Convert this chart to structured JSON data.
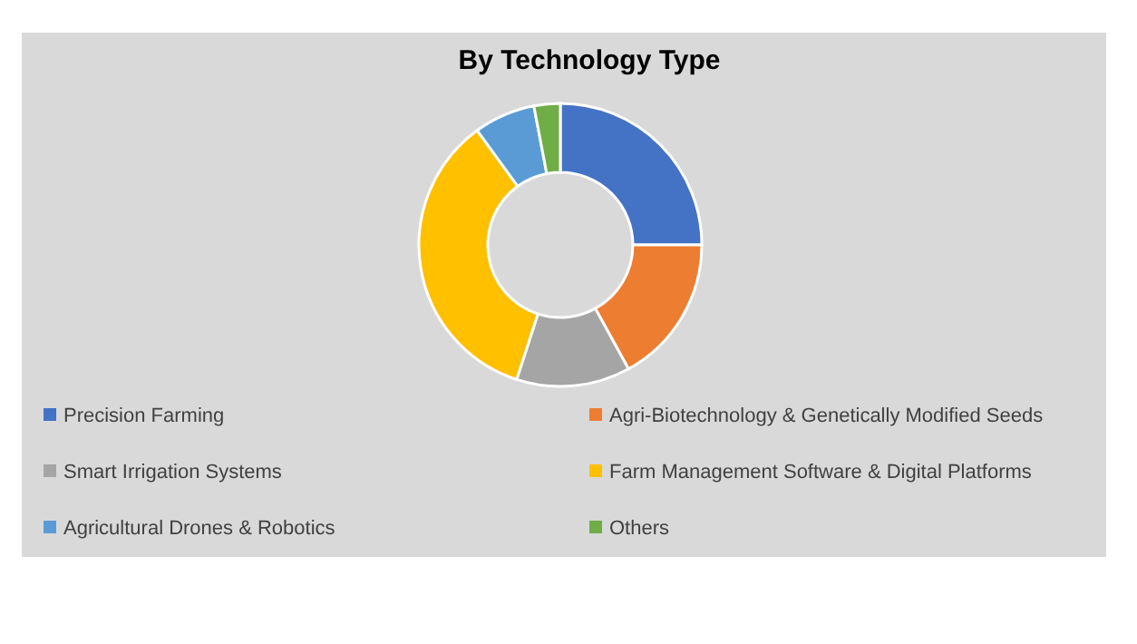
{
  "chart_data": {
    "type": "donut",
    "title": "By Technology Type",
    "categories": [
      "Precision Farming",
      "Agri-Biotechnology & Genetically Modified Seeds",
      "Smart Irrigation Systems",
      "Farm Management Software & Digital Platforms",
      "Agricultural Drones & Robotics",
      "Others"
    ],
    "values": [
      25,
      17,
      13,
      35,
      7,
      3
    ],
    "colors": [
      "#4472c4",
      "#ed7d31",
      "#a5a5a5",
      "#ffc000",
      "#5b9bd5",
      "#70ad47"
    ],
    "legend": "bottom"
  }
}
